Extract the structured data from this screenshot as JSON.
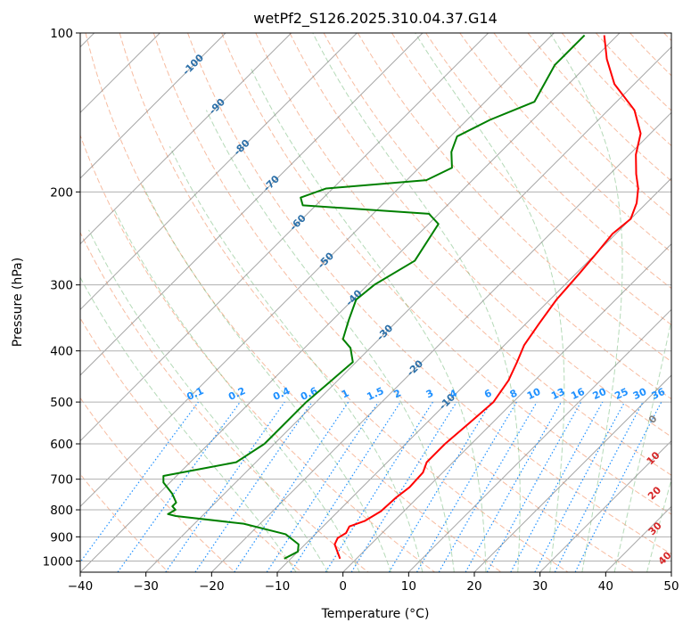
{
  "chart_data": {
    "type": "line",
    "title": "wetPf2_S126.2025.310.04.37.G14",
    "xlabel": "Temperature (°C)",
    "ylabel": "Pressure (hPa)",
    "xlim": [
      -40,
      50
    ],
    "ylim": [
      1050,
      100
    ],
    "y_scale": "log",
    "x_ticks": [
      -40,
      -30,
      -20,
      -10,
      0,
      10,
      20,
      30,
      40,
      50
    ],
    "y_ticks": [
      1000,
      900,
      800,
      700,
      600,
      500,
      400,
      300,
      200,
      100
    ],
    "grid": true,
    "background_lines": {
      "dry_adiabat_color": "#f4a582",
      "moist_adiabat_color": "#5aae61",
      "isotherm_color": "#808080",
      "mixing_ratio_color": "#1e90ff"
    },
    "isotherm_labels": [
      {
        "text": "-100",
        "temp": -100,
        "pressure": 115
      },
      {
        "text": "-90",
        "temp": -90,
        "pressure": 138
      },
      {
        "text": "-80",
        "temp": -80,
        "pressure": 165
      },
      {
        "text": "-70",
        "temp": -70,
        "pressure": 193
      },
      {
        "text": "-60",
        "temp": -60,
        "pressure": 229
      },
      {
        "text": "-50",
        "temp": -50,
        "pressure": 270
      },
      {
        "text": "-40",
        "temp": -40,
        "pressure": 318
      },
      {
        "text": "-30",
        "temp": -30,
        "pressure": 370
      },
      {
        "text": "-20",
        "temp": -20,
        "pressure": 432
      },
      {
        "text": "-10",
        "temp": -10,
        "pressure": 500
      }
    ],
    "moist_labels": [
      {
        "text": "0",
        "temp": 24,
        "pressure": 540,
        "color": "#808080"
      },
      {
        "text": "10",
        "temp": 30,
        "pressure": 640,
        "color": "#d62728"
      },
      {
        "text": "20",
        "temp": 35.5,
        "pressure": 745,
        "color": "#d62728"
      },
      {
        "text": "30",
        "temp": 41,
        "pressure": 870,
        "color": "#d62728"
      },
      {
        "text": "40",
        "temp": 47,
        "pressure": 990,
        "color": "#d62728"
      }
    ],
    "mixing_ratio_values": [
      0.1,
      0.2,
      0.4,
      0.6,
      1,
      1.5,
      2,
      3,
      4,
      6,
      8,
      10,
      13,
      16,
      20,
      25,
      30,
      36
    ],
    "mixing_ratio_labels": [
      "0.1",
      "0.2",
      "0.4",
      "0.6",
      "1",
      "1.5",
      "2",
      "3",
      "4",
      "6",
      "8",
      "10",
      "13",
      "16",
      "20",
      "25",
      "30",
      "36"
    ],
    "series": [
      {
        "kind": "temperature",
        "color": "#ff0000",
        "points": [
          [
            -2.5,
            990
          ],
          [
            -5.5,
            930
          ],
          [
            -6.0,
            905
          ],
          [
            -5.5,
            885
          ],
          [
            -6.0,
            860
          ],
          [
            -4.5,
            840
          ],
          [
            -3.5,
            805
          ],
          [
            -3.3,
            760
          ],
          [
            -2.8,
            725
          ],
          [
            -3.0,
            680
          ],
          [
            -4.0,
            650
          ],
          [
            -4.0,
            600
          ],
          [
            -3.5,
            550
          ],
          [
            -3.0,
            500
          ],
          [
            -4.0,
            455
          ],
          [
            -5.5,
            420
          ],
          [
            -7.0,
            390
          ],
          [
            -8.0,
            355
          ],
          [
            -9.0,
            320
          ],
          [
            -9.5,
            285
          ],
          [
            -10.0,
            260
          ],
          [
            -10.5,
            240
          ],
          [
            -10.0,
            225
          ],
          [
            -11.5,
            210
          ],
          [
            -13.5,
            197
          ],
          [
            -16.0,
            185
          ],
          [
            -19.0,
            170
          ],
          [
            -21.5,
            155
          ],
          [
            -26.0,
            140
          ],
          [
            -33.0,
            125
          ],
          [
            -38.0,
            112
          ],
          [
            -42.0,
            101
          ]
        ]
      },
      {
        "kind": "dewpoint",
        "color": "#008000",
        "points": [
          [
            -11.0,
            990
          ],
          [
            -10.0,
            960
          ],
          [
            -11.0,
            930
          ],
          [
            -14.5,
            890
          ],
          [
            -22.5,
            850
          ],
          [
            -34.0,
            822
          ],
          [
            -35.5,
            815
          ],
          [
            -35.0,
            800
          ],
          [
            -36.0,
            788
          ],
          [
            -36.0,
            775
          ],
          [
            -38.0,
            745
          ],
          [
            -41.0,
            710
          ],
          [
            -42.0,
            690
          ],
          [
            -37.5,
            670
          ],
          [
            -33.0,
            650
          ],
          [
            -31.5,
            600
          ],
          [
            -31.5,
            550
          ],
          [
            -31.5,
            500
          ],
          [
            -31.0,
            460
          ],
          [
            -30.5,
            420
          ],
          [
            -33.0,
            395
          ],
          [
            -35.5,
            380
          ],
          [
            -37.5,
            350
          ],
          [
            -39.5,
            320
          ],
          [
            -39.0,
            300
          ],
          [
            -36.5,
            270
          ],
          [
            -38.5,
            230
          ],
          [
            -41.5,
            220
          ],
          [
            -62.0,
            212
          ],
          [
            -63.5,
            205
          ],
          [
            -61.0,
            197
          ],
          [
            -47.0,
            190
          ],
          [
            -45.0,
            180
          ],
          [
            -47.5,
            168
          ],
          [
            -49.0,
            157
          ],
          [
            -46.5,
            146
          ],
          [
            -42.5,
            135
          ],
          [
            -45.0,
            115
          ],
          [
            -45.0,
            101
          ]
        ]
      }
    ]
  }
}
